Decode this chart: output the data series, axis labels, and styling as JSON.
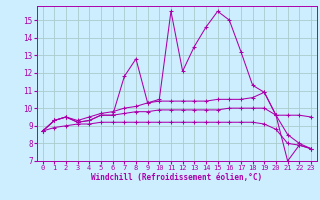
{
  "background_color": "#cceeff",
  "line_color": "#aa00aa",
  "grid_color": "#aacccc",
  "xlabel": "Windchill (Refroidissement éolien,°C)",
  "xlim": [
    -0.5,
    23.5
  ],
  "ylim": [
    7,
    15.8
  ],
  "yticks": [
    7,
    8,
    9,
    10,
    11,
    12,
    13,
    14,
    15
  ],
  "xticks": [
    0,
    1,
    2,
    3,
    4,
    5,
    6,
    7,
    8,
    9,
    10,
    11,
    12,
    13,
    14,
    15,
    16,
    17,
    18,
    19,
    20,
    21,
    22,
    23
  ],
  "series": [
    {
      "x": [
        0,
        1,
        2,
        3,
        4,
        5,
        6,
        7,
        8,
        9,
        10,
        11,
        12,
        13,
        14,
        15,
        16,
        17,
        18,
        19,
        20,
        21,
        22,
        23
      ],
      "y": [
        8.7,
        9.3,
        9.5,
        9.2,
        9.3,
        9.6,
        9.6,
        11.8,
        12.8,
        10.3,
        10.5,
        15.5,
        12.1,
        13.5,
        14.6,
        15.5,
        15.0,
        13.2,
        11.3,
        10.9,
        9.6,
        7.0,
        7.9,
        7.7
      ]
    },
    {
      "x": [
        0,
        1,
        2,
        3,
        4,
        5,
        6,
        7,
        8,
        9,
        10,
        11,
        12,
        13,
        14,
        15,
        16,
        17,
        18,
        19,
        20,
        21,
        22,
        23
      ],
      "y": [
        8.7,
        9.3,
        9.5,
        9.3,
        9.5,
        9.7,
        9.8,
        10.0,
        10.1,
        10.3,
        10.4,
        10.4,
        10.4,
        10.4,
        10.4,
        10.5,
        10.5,
        10.5,
        10.6,
        10.9,
        9.6,
        9.6,
        9.6,
        9.5
      ]
    },
    {
      "x": [
        0,
        1,
        2,
        3,
        4,
        5,
        6,
        7,
        8,
        9,
        10,
        11,
        12,
        13,
        14,
        15,
        16,
        17,
        18,
        19,
        20,
        21,
        22,
        23
      ],
      "y": [
        8.7,
        8.9,
        9.0,
        9.1,
        9.1,
        9.2,
        9.2,
        9.2,
        9.2,
        9.2,
        9.2,
        9.2,
        9.2,
        9.2,
        9.2,
        9.2,
        9.2,
        9.2,
        9.2,
        9.1,
        8.8,
        8.0,
        7.9,
        7.7
      ]
    },
    {
      "x": [
        0,
        1,
        2,
        3,
        4,
        5,
        6,
        7,
        8,
        9,
        10,
        11,
        12,
        13,
        14,
        15,
        16,
        17,
        18,
        19,
        20,
        21,
        22,
        23
      ],
      "y": [
        8.7,
        9.3,
        9.5,
        9.2,
        9.3,
        9.6,
        9.6,
        9.7,
        9.8,
        9.8,
        9.9,
        9.9,
        9.9,
        9.9,
        9.9,
        9.9,
        10.0,
        10.0,
        10.0,
        10.0,
        9.6,
        8.5,
        8.0,
        7.7
      ]
    }
  ]
}
